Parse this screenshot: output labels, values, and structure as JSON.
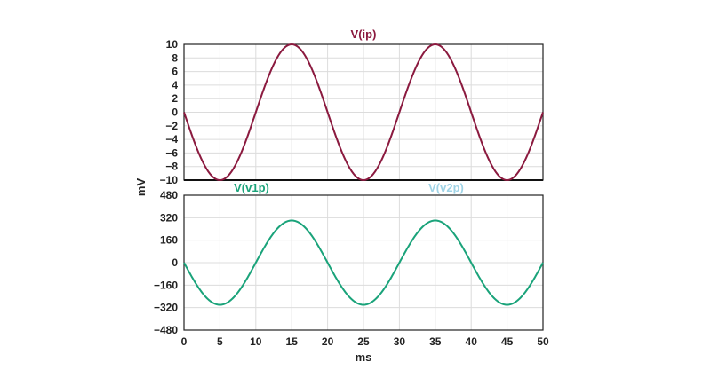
{
  "chart_data": [
    {
      "type": "line",
      "title": "V(ip)",
      "color": "#8b1a3f",
      "xlabel": "ms",
      "ylabel": "mV",
      "xlim": [
        0,
        50
      ],
      "ylim": [
        -10,
        10
      ],
      "grid": true,
      "x_ticks": [
        "0",
        "5",
        "10",
        "15",
        "20",
        "25",
        "30",
        "35",
        "40",
        "45",
        "50"
      ],
      "y_ticks": [
        "10",
        "8",
        "6",
        "4",
        "2",
        "0",
        "−2",
        "−4",
        "−6",
        "−8",
        "−10"
      ],
      "series": [
        {
          "name": "V(ip)",
          "x": [
            0,
            5,
            10,
            15,
            20,
            25,
            30,
            35,
            40,
            45,
            50
          ],
          "y": [
            0,
            -10,
            0,
            10,
            0,
            -10,
            0,
            10,
            0,
            -10,
            0
          ]
        }
      ]
    },
    {
      "type": "line",
      "title": "",
      "color": "#1aa37a",
      "xlabel": "ms",
      "ylabel": "mV",
      "xlim": [
        0,
        50
      ],
      "ylim": [
        -480,
        480
      ],
      "grid": true,
      "x_ticks": [
        "0",
        "5",
        "10",
        "15",
        "20",
        "25",
        "30",
        "35",
        "40",
        "45",
        "50"
      ],
      "y_ticks": [
        "480",
        "320",
        "160",
        "0",
        "−160",
        "−320",
        "−480"
      ],
      "legend": [
        {
          "label": "V(v1p)",
          "color": "#1aa37a"
        },
        {
          "label": "V(v2p)",
          "color": "#9fd3e6"
        }
      ],
      "series": [
        {
          "name": "V(v1p)",
          "x": [
            0,
            5,
            10,
            15,
            20,
            25,
            30,
            35,
            40,
            45,
            50
          ],
          "y": [
            0,
            -300,
            0,
            300,
            0,
            -300,
            0,
            300,
            0,
            -300,
            0
          ]
        }
      ]
    }
  ]
}
